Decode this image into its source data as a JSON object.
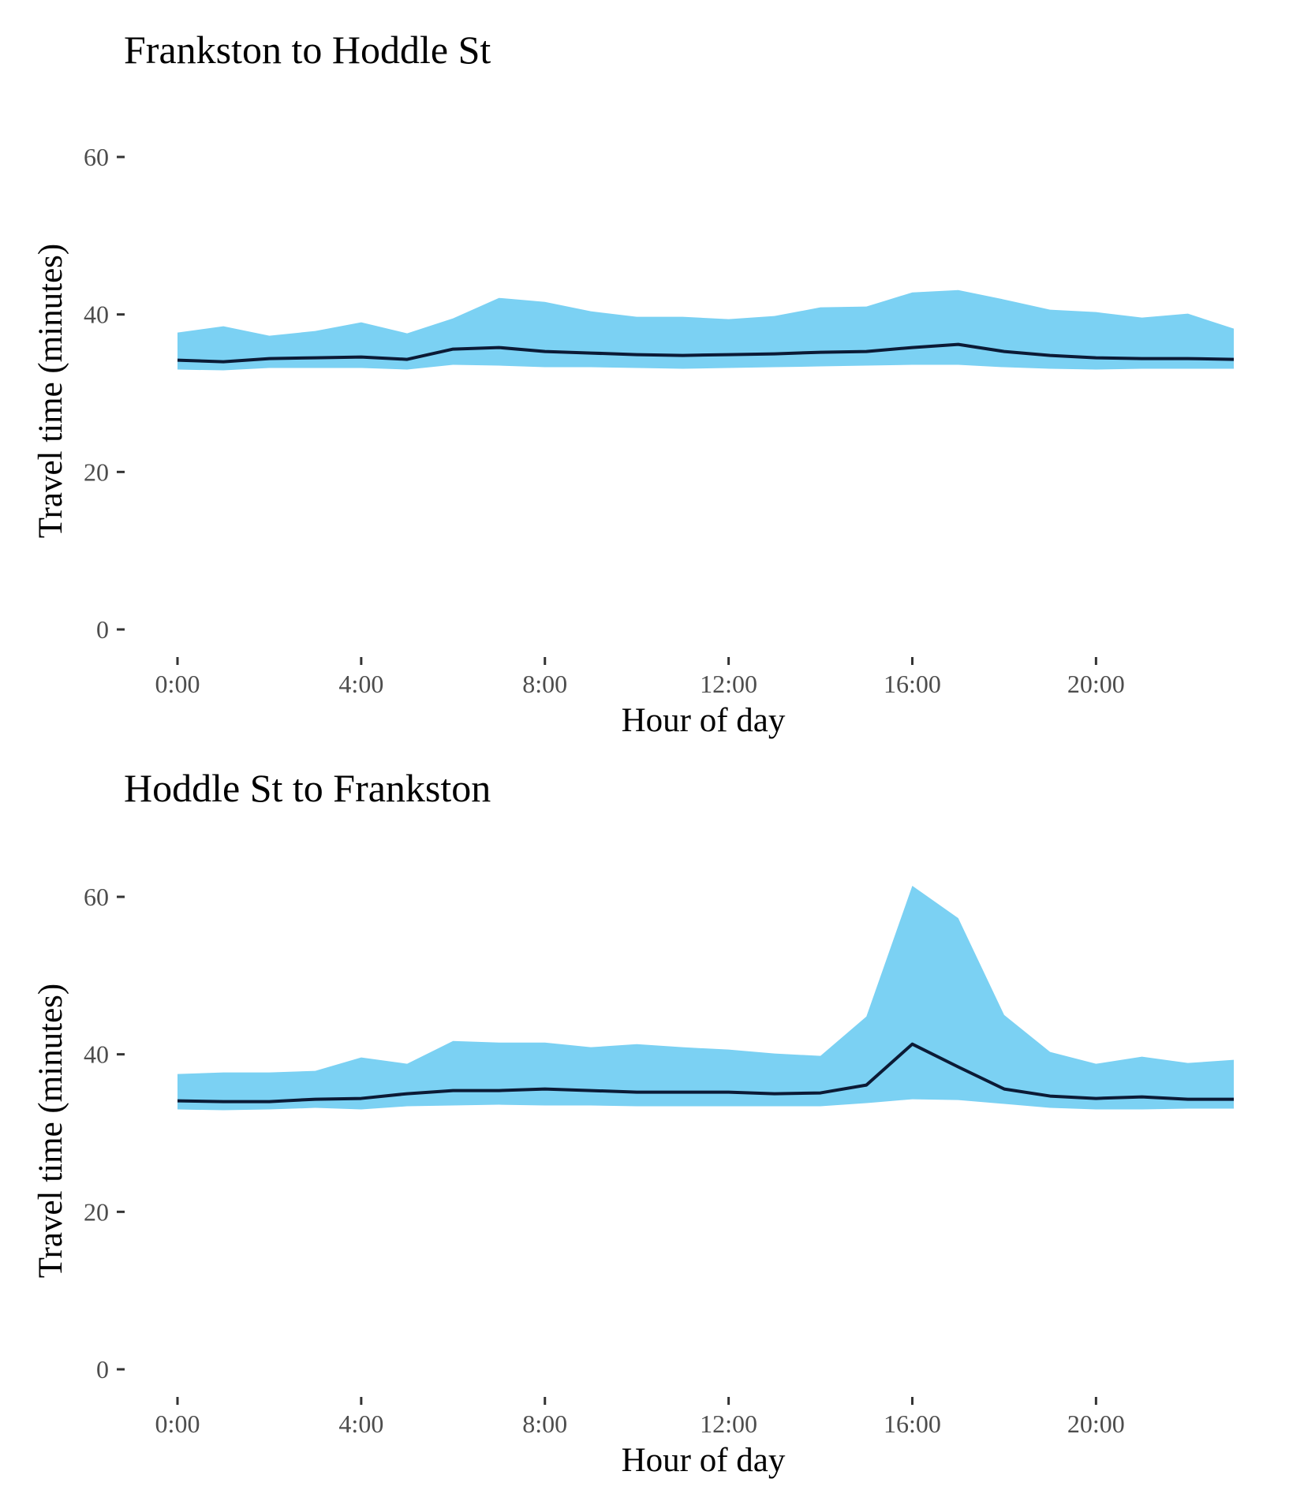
{
  "colors": {
    "band": "#7bd1f3",
    "line": "#0b1a35",
    "tick_label": "#4d4d4d"
  },
  "chart_data": [
    {
      "type": "area",
      "title": "Frankston to Hoddle St",
      "xlabel": "Hour of day",
      "ylabel": "Travel time (minutes)",
      "xlim": [
        0,
        23
      ],
      "ylim": [
        0,
        60
      ],
      "x_ticks": [
        0,
        4,
        8,
        12,
        16,
        20
      ],
      "x_tick_labels": [
        "0:00",
        "4:00",
        "8:00",
        "12:00",
        "16:00",
        "20:00"
      ],
      "y_ticks": [
        0,
        20,
        40,
        60
      ],
      "y_tick_labels": [
        "0",
        "20",
        "40",
        "60"
      ],
      "grid": false,
      "legend": "none",
      "x": [
        0,
        1,
        2,
        3,
        4,
        5,
        6,
        7,
        8,
        9,
        10,
        11,
        12,
        13,
        14,
        15,
        16,
        17,
        18,
        19,
        20,
        21,
        22,
        23
      ],
      "band_low": [
        33.0,
        32.9,
        33.2,
        33.2,
        33.2,
        33.0,
        33.6,
        33.5,
        33.3,
        33.3,
        33.2,
        33.1,
        33.2,
        33.3,
        33.4,
        33.5,
        33.6,
        33.6,
        33.3,
        33.1,
        33.0,
        33.1,
        33.1,
        33.1
      ],
      "band_high": [
        37.7,
        38.5,
        37.3,
        37.9,
        39.0,
        37.6,
        39.5,
        42.1,
        41.6,
        40.4,
        39.7,
        39.7,
        39.4,
        39.8,
        40.9,
        41.0,
        42.8,
        43.1,
        41.9,
        40.6,
        40.3,
        39.6,
        40.1,
        38.2
      ],
      "median": [
        34.2,
        34.0,
        34.4,
        34.5,
        34.6,
        34.3,
        35.6,
        35.8,
        35.3,
        35.1,
        34.9,
        34.8,
        34.9,
        35.0,
        35.2,
        35.3,
        35.8,
        36.2,
        35.3,
        34.8,
        34.5,
        34.4,
        34.4,
        34.3
      ]
    },
    {
      "type": "area",
      "title": "Hoddle St to Frankston",
      "xlabel": "Hour of day",
      "ylabel": "Travel time (minutes)",
      "xlim": [
        0,
        23
      ],
      "ylim": [
        0,
        60
      ],
      "x_ticks": [
        0,
        4,
        8,
        12,
        16,
        20
      ],
      "x_tick_labels": [
        "0:00",
        "4:00",
        "8:00",
        "12:00",
        "16:00",
        "20:00"
      ],
      "y_ticks": [
        0,
        20,
        40,
        60
      ],
      "y_tick_labels": [
        "0",
        "20",
        "40",
        "60"
      ],
      "grid": false,
      "legend": "none",
      "x": [
        0,
        1,
        2,
        3,
        4,
        5,
        6,
        7,
        8,
        9,
        10,
        11,
        12,
        13,
        14,
        15,
        16,
        17,
        18,
        19,
        20,
        21,
        22,
        23
      ],
      "band_low": [
        33.0,
        32.9,
        33.0,
        33.2,
        33.0,
        33.4,
        33.5,
        33.6,
        33.5,
        33.5,
        33.4,
        33.4,
        33.4,
        33.4,
        33.4,
        33.8,
        34.3,
        34.2,
        33.7,
        33.2,
        33.0,
        33.0,
        33.1,
        33.1
      ],
      "band_high": [
        37.5,
        37.7,
        37.7,
        37.9,
        39.6,
        38.8,
        41.7,
        41.5,
        41.5,
        40.9,
        41.3,
        40.9,
        40.6,
        40.1,
        39.8,
        44.8,
        61.4,
        57.3,
        45.0,
        40.3,
        38.8,
        39.7,
        38.9,
        39.3
      ],
      "median": [
        34.1,
        34.0,
        34.0,
        34.3,
        34.4,
        35.0,
        35.4,
        35.4,
        35.6,
        35.4,
        35.2,
        35.2,
        35.2,
        35.0,
        35.1,
        36.1,
        41.3,
        38.4,
        35.6,
        34.7,
        34.4,
        34.6,
        34.3,
        34.3
      ]
    }
  ]
}
